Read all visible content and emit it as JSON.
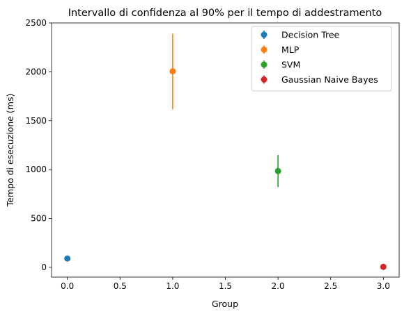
{
  "chart_data": {
    "type": "scatter",
    "title": "Intervallo di confidenza al 90% per il tempo di addestramento",
    "xlabel": "Group",
    "ylabel": "Tempo di esecuzione (ms)",
    "xlim": [
      -0.15,
      3.15
    ],
    "ylim": [
      -100,
      2500
    ],
    "xticks": [
      "0.0",
      "0.5",
      "1.0",
      "1.5",
      "2.0",
      "2.5",
      "3.0"
    ],
    "yticks": [
      "0",
      "500",
      "1000",
      "1500",
      "2000",
      "2500"
    ],
    "grid": false,
    "legend_position": "top-right",
    "series": [
      {
        "name": "Decision Tree",
        "color": "#1f77b4",
        "x": 0,
        "y": 90,
        "err_low": 85,
        "err_high": 95
      },
      {
        "name": "MLP",
        "color": "#ff7f0e",
        "x": 1,
        "y": 2005,
        "err_low": 1615,
        "err_high": 2390
      },
      {
        "name": "SVM",
        "color": "#2ca02c",
        "x": 2,
        "y": 985,
        "err_low": 820,
        "err_high": 1150
      },
      {
        "name": "Gaussian Naive Bayes",
        "color": "#d62728",
        "x": 3,
        "y": 5,
        "err_low": 3,
        "err_high": 7
      }
    ]
  }
}
